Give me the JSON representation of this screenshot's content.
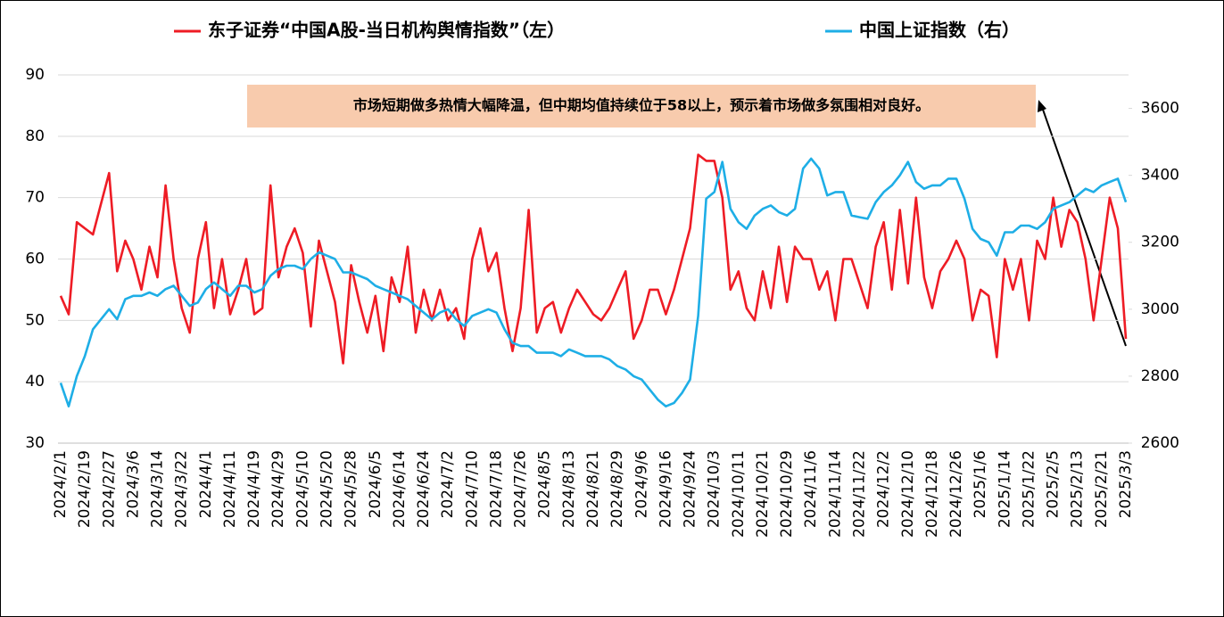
{
  "chart_data": {
    "type": "line",
    "annotation": "市场短期做多热情大幅降温，但中期均值持续位于58以上，预示着市场做多氛围相对良好。",
    "legend": "top",
    "grid": true,
    "categories": [
      "2024/2/1",
      null,
      null,
      "2024/2/19",
      null,
      null,
      "2024/2/27",
      null,
      null,
      "2024/3/6",
      null,
      null,
      "2024/3/14",
      null,
      null,
      "2024/3/22",
      null,
      null,
      "2024/4/1",
      null,
      null,
      "2024/4/11",
      null,
      null,
      "2024/4/19",
      null,
      null,
      "2024/4/29",
      null,
      null,
      "2024/5/10",
      null,
      null,
      "2024/5/20",
      null,
      null,
      "2024/5/28",
      null,
      null,
      "2024/6/5",
      null,
      null,
      "2024/6/14",
      null,
      null,
      "2024/6/24",
      null,
      null,
      "2024/7/2",
      null,
      null,
      "2024/7/10",
      null,
      null,
      "2024/7/18",
      null,
      null,
      "2024/7/26",
      null,
      null,
      "2024/8/5",
      null,
      null,
      "2024/8/13",
      null,
      null,
      "2024/8/21",
      null,
      null,
      "2024/8/29",
      null,
      null,
      "2024/9/6",
      null,
      null,
      "2024/9/16",
      null,
      null,
      "2024/9/24",
      null,
      null,
      "2024/10/3",
      null,
      null,
      "2024/10/11",
      null,
      null,
      "2024/10/21",
      null,
      null,
      "2024/10/29",
      null,
      null,
      "2024/11/6",
      null,
      null,
      "2024/11/14",
      null,
      null,
      "2024/11/22",
      null,
      null,
      "2024/12/2",
      null,
      null,
      "2024/12/10",
      null,
      null,
      "2024/12/18",
      null,
      null,
      "2024/12/26",
      null,
      null,
      "2025/1/6",
      null,
      null,
      "2025/1/14",
      null,
      null,
      "2025/1/22",
      null,
      null,
      "2025/2/5",
      null,
      null,
      "2025/2/13",
      null,
      null,
      "2025/2/21",
      null,
      null,
      "2025/3/3"
    ],
    "series": [
      {
        "name": "东子证券“中国A股-当日机构舆情指数”（左）",
        "color": "#ee1c25",
        "axis": "y",
        "values": [
          54,
          51,
          66,
          65,
          64,
          69,
          74,
          58,
          63,
          60,
          55,
          62,
          57,
          72,
          60,
          52,
          48,
          60,
          66,
          52,
          60,
          51,
          55,
          60,
          51,
          52,
          72,
          57,
          62,
          65,
          61,
          49,
          63,
          58,
          53,
          43,
          59,
          53,
          48,
          54,
          45,
          57,
          53,
          62,
          48,
          55,
          50,
          55,
          50,
          52,
          47,
          60,
          65,
          58,
          61,
          52,
          45,
          52,
          68,
          48,
          52,
          53,
          48,
          52,
          55,
          53,
          51,
          50,
          52,
          55,
          58,
          47,
          50,
          55,
          55,
          51,
          55,
          60,
          65,
          77,
          76,
          76,
          70,
          55,
          58,
          52,
          50,
          58,
          52,
          62,
          53,
          62,
          60,
          60,
          55,
          58,
          50,
          60,
          60,
          56,
          52,
          62,
          66,
          55,
          68,
          56,
          70,
          57,
          52,
          58,
          60,
          63,
          60,
          50,
          55,
          54,
          44,
          60,
          55,
          60,
          50,
          63,
          60,
          70,
          62,
          68,
          66,
          60,
          50,
          60,
          70,
          65,
          47
        ]
      },
      {
        "name": "中国上证指数（右）",
        "color": "#1eaee6",
        "axis": "y2",
        "values": [
          2780,
          2710,
          2800,
          2860,
          2940,
          2970,
          3000,
          2970,
          3030,
          3040,
          3040,
          3050,
          3040,
          3060,
          3070,
          3040,
          3010,
          3020,
          3060,
          3080,
          3060,
          3040,
          3070,
          3070,
          3050,
          3060,
          3100,
          3120,
          3130,
          3130,
          3120,
          3150,
          3170,
          3160,
          3150,
          3110,
          3110,
          3100,
          3090,
          3070,
          3060,
          3050,
          3040,
          3030,
          3010,
          2990,
          2970,
          2990,
          3000,
          2970,
          2950,
          2980,
          2990,
          3000,
          2990,
          2940,
          2900,
          2890,
          2890,
          2870,
          2870,
          2870,
          2860,
          2880,
          2870,
          2860,
          2860,
          2860,
          2850,
          2830,
          2820,
          2800,
          2790,
          2760,
          2730,
          2710,
          2720,
          2750,
          2790,
          2980,
          3330,
          3350,
          3440,
          3300,
          3260,
          3240,
          3280,
          3300,
          3310,
          3290,
          3280,
          3300,
          3420,
          3450,
          3420,
          3340,
          3350,
          3350,
          3280,
          3275,
          3270,
          3320,
          3350,
          3370,
          3400,
          3440,
          3380,
          3360,
          3370,
          3370,
          3390,
          3390,
          3330,
          3240,
          3210,
          3200,
          3160,
          3230,
          3230,
          3250,
          3250,
          3240,
          3260,
          3300,
          3310,
          3320,
          3340,
          3360,
          3350,
          3370,
          3380,
          3390,
          3320
        ]
      }
    ],
    "ylim": [
      30,
      90
    ],
    "yticks": [
      30,
      40,
      50,
      60,
      70,
      80,
      90
    ],
    "y2lim": [
      2600,
      3700
    ],
    "y2ticks": [
      2600,
      2800,
      3000,
      3200,
      3400,
      3600
    ]
  }
}
